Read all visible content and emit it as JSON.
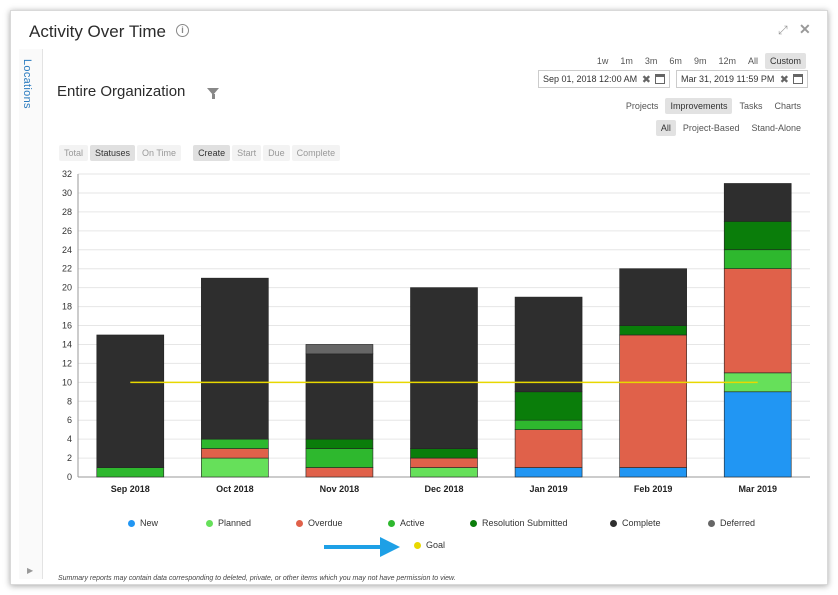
{
  "window": {
    "title": "Activity Over Time"
  },
  "side_tab": {
    "label": "Locations"
  },
  "org_title": "Entire Organization",
  "range_buttons": [
    {
      "label": "1w",
      "active": false
    },
    {
      "label": "1m",
      "active": false
    },
    {
      "label": "3m",
      "active": false
    },
    {
      "label": "6m",
      "active": false
    },
    {
      "label": "9m",
      "active": false
    },
    {
      "label": "12m",
      "active": false
    },
    {
      "label": "All",
      "active": false
    },
    {
      "label": "Custom",
      "active": true
    }
  ],
  "date_from": "Sep 01, 2018 12:00 AM",
  "date_to": "Mar 31, 2019 11:59 PM",
  "view_tabs": [
    {
      "label": "Projects",
      "active": false
    },
    {
      "label": "Improvements",
      "active": true
    },
    {
      "label": "Tasks",
      "active": false
    },
    {
      "label": "Charts",
      "active": false
    }
  ],
  "scope_tabs": [
    {
      "label": "All",
      "active": true
    },
    {
      "label": "Project-Based",
      "active": false
    },
    {
      "label": "Stand-Alone",
      "active": false
    }
  ],
  "metric_tabs": [
    {
      "label": "Total",
      "active": false
    },
    {
      "label": "Statuses",
      "active": true
    },
    {
      "label": "On Time",
      "active": false
    }
  ],
  "date_tabs": [
    {
      "label": "Create",
      "active": true
    },
    {
      "label": "Start",
      "active": false
    },
    {
      "label": "Due",
      "active": false
    },
    {
      "label": "Complete",
      "active": false
    }
  ],
  "footnote": "Summary reports may contain data corresponding to deleted, private, or other items which you may not have permission to view.",
  "chart_data": {
    "type": "bar",
    "stacked": true,
    "categories": [
      "Sep 2018",
      "Oct 2018",
      "Nov 2018",
      "Dec 2018",
      "Jan 2019",
      "Feb 2019",
      "Mar 2019"
    ],
    "ylim": [
      0,
      32
    ],
    "yticks": [
      0,
      2,
      4,
      6,
      8,
      10,
      12,
      14,
      16,
      18,
      20,
      22,
      24,
      26,
      28,
      30,
      32
    ],
    "grid": true,
    "series": [
      {
        "name": "New",
        "color": "#2196f3",
        "values": [
          0,
          0,
          0,
          0,
          1,
          1,
          9
        ]
      },
      {
        "name": "Planned",
        "color": "#66e05a",
        "values": [
          0,
          2,
          0,
          1,
          0,
          0,
          2
        ]
      },
      {
        "name": "Overdue",
        "color": "#e0614a",
        "values": [
          0,
          1,
          1,
          1,
          4,
          14,
          11
        ]
      },
      {
        "name": "Active",
        "color": "#2eb82e",
        "values": [
          1,
          1,
          2,
          0,
          1,
          0,
          2
        ]
      },
      {
        "name": "Resolution Submitted",
        "color": "#0a7d0a",
        "values": [
          0,
          0,
          1,
          1,
          3,
          1,
          3
        ]
      },
      {
        "name": "Complete",
        "color": "#2e2e2e",
        "values": [
          14,
          17,
          9,
          17,
          10,
          6,
          4
        ]
      },
      {
        "name": "Deferred",
        "color": "#666666",
        "values": [
          0,
          0,
          1,
          0,
          0,
          0,
          0
        ]
      }
    ],
    "goal": {
      "name": "Goal",
      "color": "#e8d800",
      "value": 10
    },
    "legend_placement": "bottom"
  }
}
